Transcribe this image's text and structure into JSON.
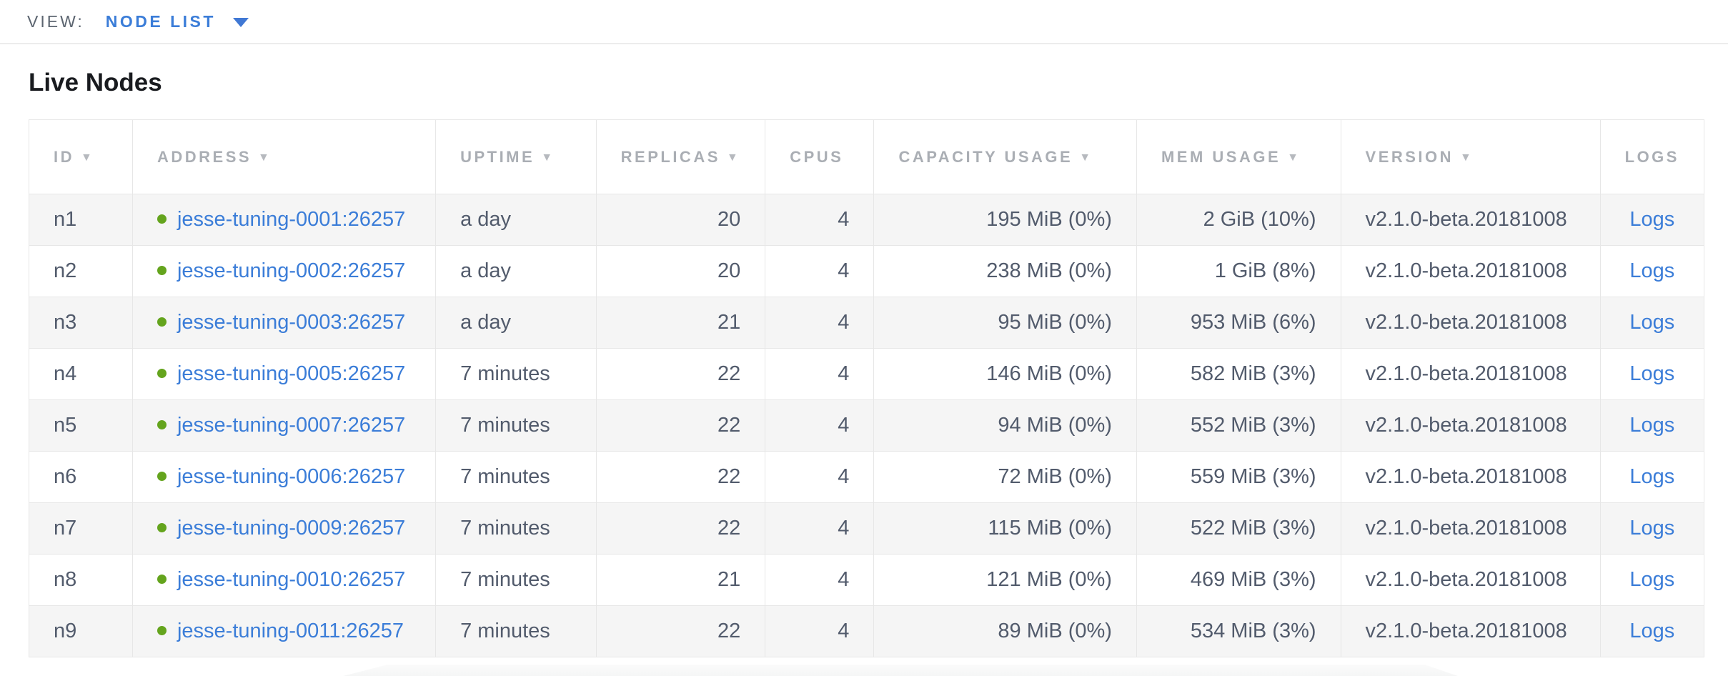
{
  "view_bar": {
    "label": "VIEW:",
    "selected_view": "NODE LIST"
  },
  "page": {
    "title": "Live Nodes"
  },
  "table": {
    "sort_icon": "▼",
    "columns": [
      {
        "label": "ID",
        "sortable": true
      },
      {
        "label": "ADDRESS",
        "sortable": true
      },
      {
        "label": "UPTIME",
        "sortable": true
      },
      {
        "label": "REPLICAS",
        "sortable": true
      },
      {
        "label": "CPUS",
        "sortable": false
      },
      {
        "label": "CAPACITY USAGE",
        "sortable": true
      },
      {
        "label": "MEM USAGE",
        "sortable": true
      },
      {
        "label": "VERSION",
        "sortable": true
      },
      {
        "label": "LOGS",
        "sortable": false
      }
    ],
    "rows": [
      {
        "id": "n1",
        "address": "jesse-tuning-0001:26257",
        "uptime": "a day",
        "replicas": "20",
        "cpus": "4",
        "capacity": "195 MiB (0%)",
        "mem": "2 GiB (10%)",
        "version": "v2.1.0-beta.20181008",
        "logs": "Logs"
      },
      {
        "id": "n2",
        "address": "jesse-tuning-0002:26257",
        "uptime": "a day",
        "replicas": "20",
        "cpus": "4",
        "capacity": "238 MiB (0%)",
        "mem": "1 GiB (8%)",
        "version": "v2.1.0-beta.20181008",
        "logs": "Logs"
      },
      {
        "id": "n3",
        "address": "jesse-tuning-0003:26257",
        "uptime": "a day",
        "replicas": "21",
        "cpus": "4",
        "capacity": "95 MiB (0%)",
        "mem": "953 MiB (6%)",
        "version": "v2.1.0-beta.20181008",
        "logs": "Logs"
      },
      {
        "id": "n4",
        "address": "jesse-tuning-0005:26257",
        "uptime": "7 minutes",
        "replicas": "22",
        "cpus": "4",
        "capacity": "146 MiB (0%)",
        "mem": "582 MiB (3%)",
        "version": "v2.1.0-beta.20181008",
        "logs": "Logs"
      },
      {
        "id": "n5",
        "address": "jesse-tuning-0007:26257",
        "uptime": "7 minutes",
        "replicas": "22",
        "cpus": "4",
        "capacity": "94 MiB (0%)",
        "mem": "552 MiB (3%)",
        "version": "v2.1.0-beta.20181008",
        "logs": "Logs"
      },
      {
        "id": "n6",
        "address": "jesse-tuning-0006:26257",
        "uptime": "7 minutes",
        "replicas": "22",
        "cpus": "4",
        "capacity": "72 MiB (0%)",
        "mem": "559 MiB (3%)",
        "version": "v2.1.0-beta.20181008",
        "logs": "Logs"
      },
      {
        "id": "n7",
        "address": "jesse-tuning-0009:26257",
        "uptime": "7 minutes",
        "replicas": "22",
        "cpus": "4",
        "capacity": "115 MiB (0%)",
        "mem": "522 MiB (3%)",
        "version": "v2.1.0-beta.20181008",
        "logs": "Logs"
      },
      {
        "id": "n8",
        "address": "jesse-tuning-0010:26257",
        "uptime": "7 minutes",
        "replicas": "21",
        "cpus": "4",
        "capacity": "121 MiB (0%)",
        "mem": "469 MiB (3%)",
        "version": "v2.1.0-beta.20181008",
        "logs": "Logs"
      },
      {
        "id": "n9",
        "address": "jesse-tuning-0011:26257",
        "uptime": "7 minutes",
        "replicas": "22",
        "cpus": "4",
        "capacity": "89 MiB (0%)",
        "mem": "534 MiB (3%)",
        "version": "v2.1.0-beta.20181008",
        "logs": "Logs"
      }
    ]
  },
  "colors": {
    "link_blue": "#3b7dd8",
    "healthy_dot_green": "#64a41d",
    "header_text_gray": "#aaaeb4",
    "body_text": "#525b6c",
    "row_stripe": "#f5f5f5",
    "border": "#e7e7e7"
  }
}
